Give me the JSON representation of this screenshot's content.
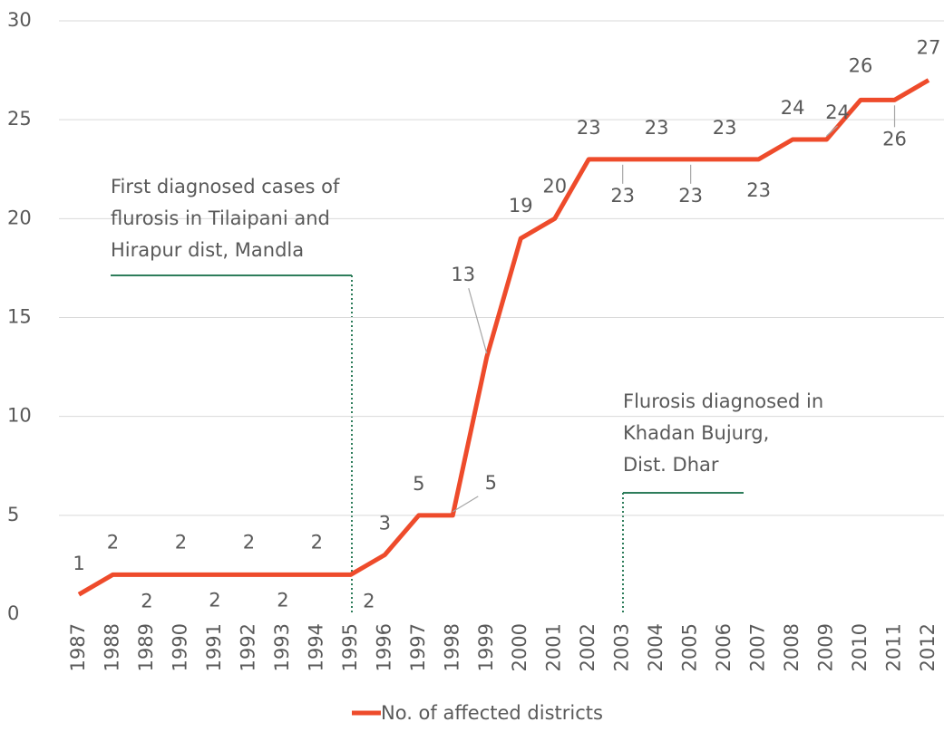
{
  "chart_data": {
    "type": "line",
    "categories": [
      "1987",
      "1988",
      "1989",
      "1990",
      "1991",
      "1992",
      "1993",
      "1994",
      "1995",
      "1996",
      "1997",
      "1998",
      "1999",
      "2000",
      "2001",
      "2002",
      "2003",
      "2004",
      "2005",
      "2006",
      "2007",
      "2008",
      "2009",
      "2010",
      "2011",
      "2012"
    ],
    "series": [
      {
        "name": "No. of affected districts",
        "color": "#ee4b2b",
        "values": [
          1,
          2,
          2,
          2,
          2,
          2,
          2,
          2,
          2,
          3,
          5,
          5,
          13,
          19,
          20,
          23,
          23,
          23,
          23,
          23,
          23,
          24,
          24,
          26,
          26,
          27
        ]
      }
    ],
    "ylim": [
      0,
      30
    ],
    "yticks": [
      0,
      5,
      10,
      15,
      20,
      25,
      30
    ],
    "grid": true,
    "legend": "bottom",
    "annotations": [
      {
        "lines": [
          "First diagnosed cases of",
          "flurosis in Tilaipani and",
          "Hirapur dist, Mandla"
        ]
      },
      {
        "lines": [
          "Flurosis diagnosed in",
          "Khadan Bujurg,",
          "Dist. Dhar"
        ]
      }
    ]
  }
}
